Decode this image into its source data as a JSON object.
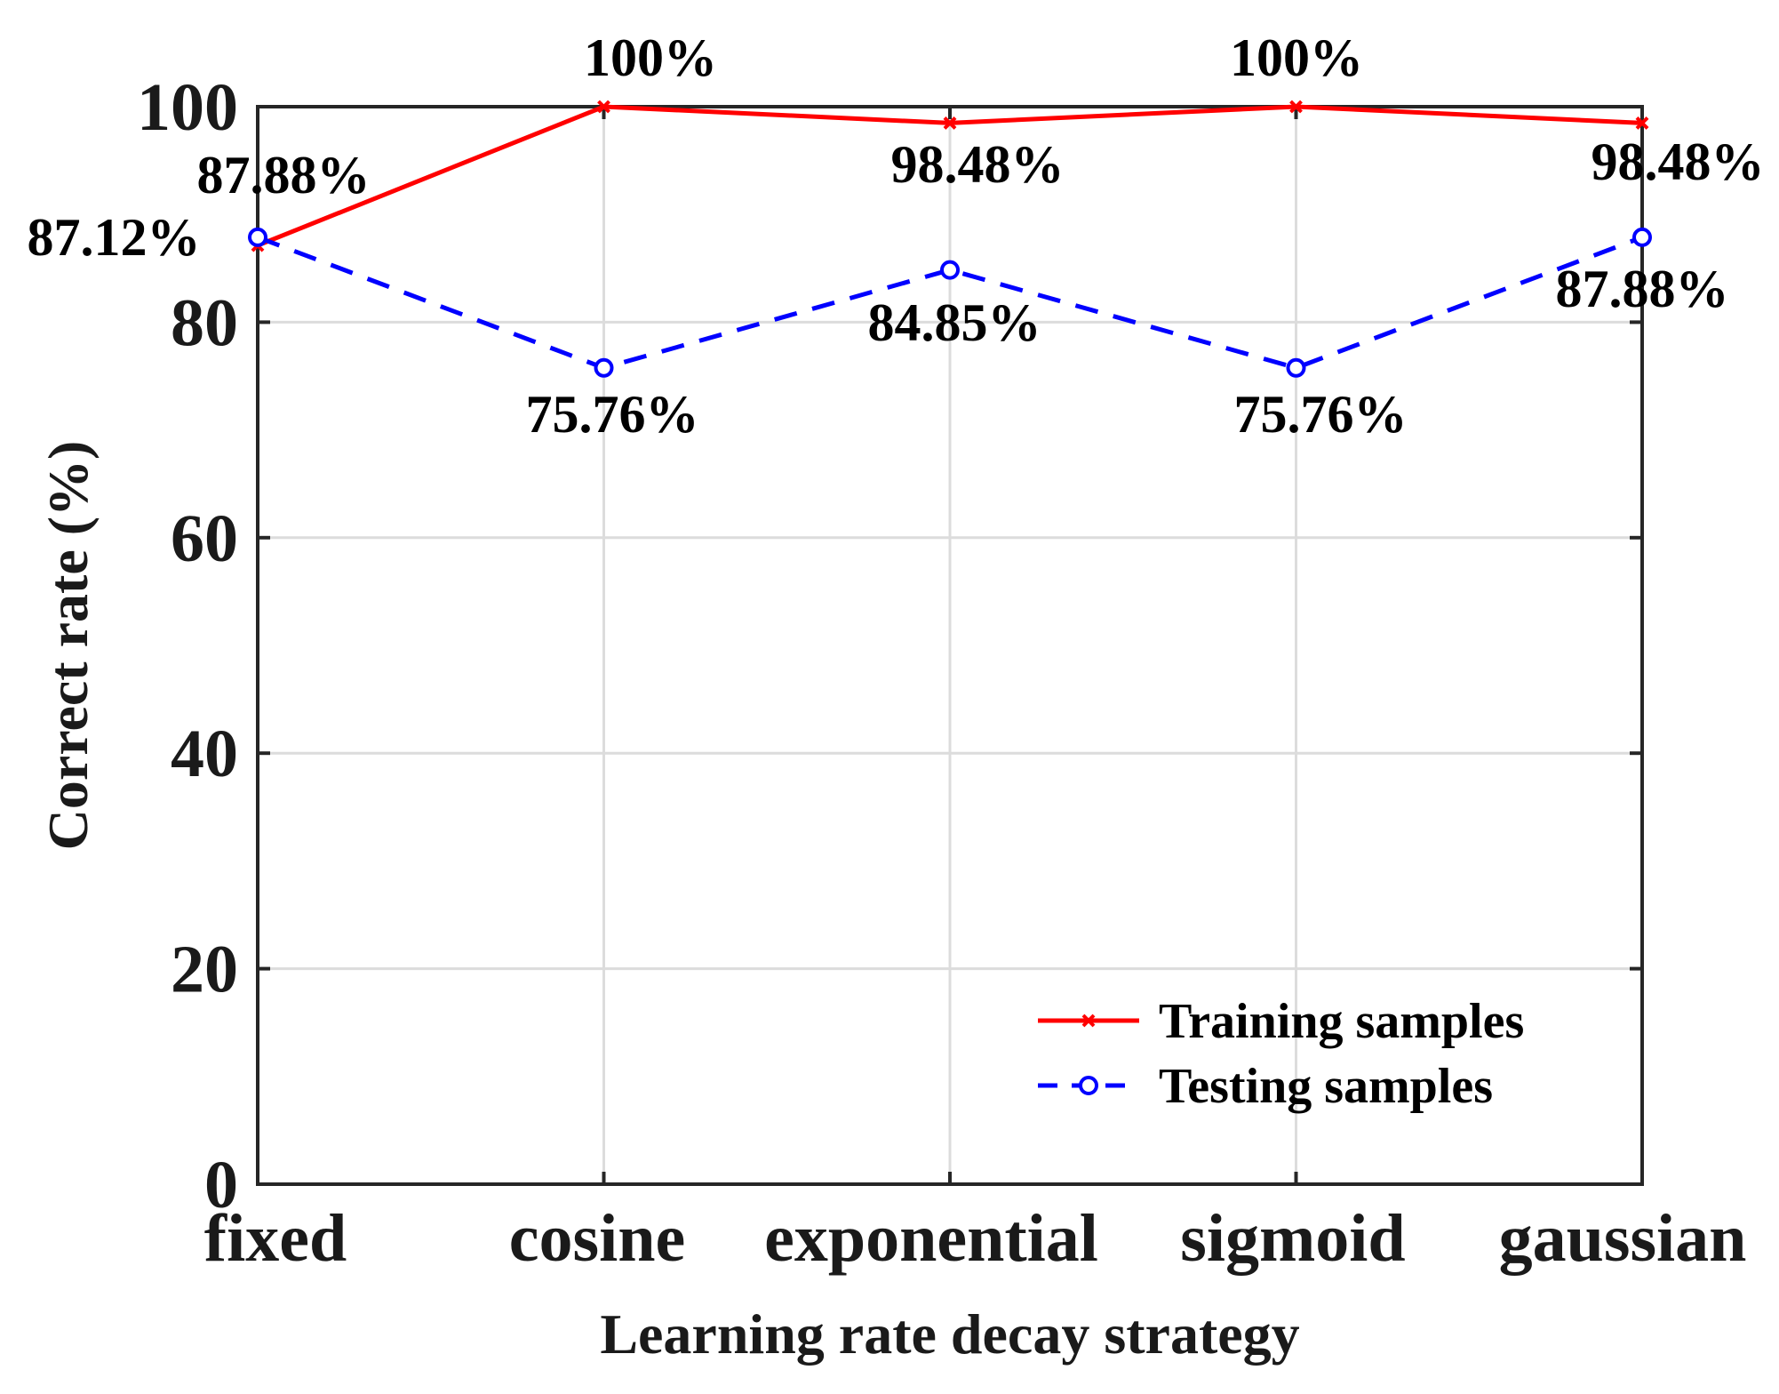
{
  "chart_data": {
    "type": "line",
    "title": "",
    "xlabel": "Learning rate decay strategy",
    "ylabel": "Correct rate (%)",
    "categories": [
      "fixed",
      "cosine",
      "exponential",
      "sigmoid",
      "gaussian"
    ],
    "ylim": [
      0,
      100
    ],
    "yticks": [
      0,
      20,
      40,
      60,
      80,
      100
    ],
    "grid": true,
    "legend_position": "bottom-right",
    "series": [
      {
        "name": "Training samples",
        "color": "#ff0000",
        "line_style": "solid",
        "marker": "x",
        "values": [
          87.12,
          100,
          98.48,
          100,
          98.48
        ],
        "labels": [
          "87.12%",
          "100%",
          "98.48%",
          "100%",
          "98.48%"
        ]
      },
      {
        "name": "Testing samples",
        "color": "#0000ff",
        "line_style": "dashed",
        "marker": "o",
        "values": [
          87.88,
          75.76,
          84.85,
          75.76,
          87.88
        ],
        "labels": [
          "87.88%",
          "75.76%",
          "84.85%",
          "75.76%",
          "87.88%"
        ]
      }
    ]
  }
}
